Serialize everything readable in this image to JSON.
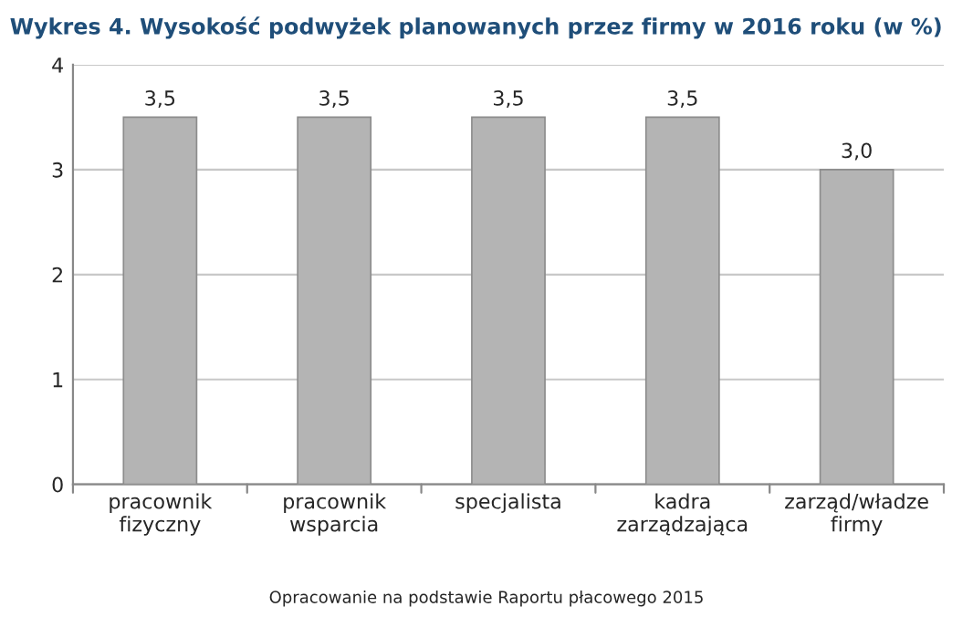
{
  "chart_data": {
    "type": "bar",
    "title": "Wykres 4. Wysokość podwyżek planowanych przez firmy w 2016 roku (w %)",
    "categories": [
      "pracownik\nfizyczny",
      "pracownik\nwsparcia",
      "specjalista",
      "kadra\nzarządzająca",
      "zarząd/władze\nfirmy"
    ],
    "values": [
      3.5,
      3.5,
      3.5,
      3.5,
      3.0
    ],
    "value_labels": [
      "3,5",
      "3,5",
      "3,5",
      "3,5",
      "3,0"
    ],
    "color": "#b4b4b4",
    "ylim": [
      0,
      4
    ],
    "yticks": [
      0,
      1,
      2,
      3,
      4
    ],
    "grid": "y",
    "annotations": [
      "Opracowanie na podstawie Raportu płacowego 2015"
    ]
  }
}
